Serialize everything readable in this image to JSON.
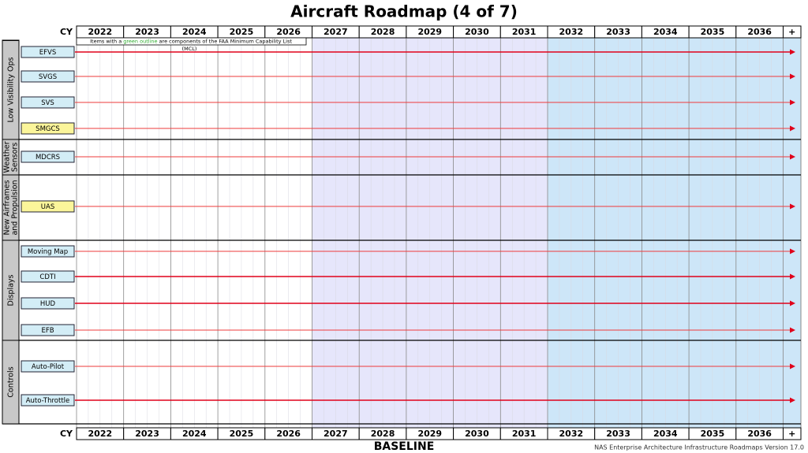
{
  "title": "Aircraft Roadmap (4 of 7)",
  "cy_label": "CY",
  "years": [
    "2022",
    "2023",
    "2024",
    "2025",
    "2026",
    "2027",
    "2028",
    "2029",
    "2030",
    "2031",
    "2032",
    "2033",
    "2034",
    "2035",
    "2036",
    "+"
  ],
  "note": {
    "before": "Items with a ",
    "highlight": "green outline",
    "after": " are components of the FAA Minimum Capability List",
    "line2": "(MCL)"
  },
  "groups": [
    {
      "label": [
        "Low Visibility Ops"
      ],
      "rows": [
        {
          "label": "EFVS"
        },
        {
          "label": "SVGS"
        },
        {
          "label": "SVS"
        },
        {
          "label": "SMGCS"
        }
      ]
    },
    {
      "label": [
        "Weather",
        "Sensors"
      ],
      "rows": [
        {
          "label": "MDCRS"
        }
      ]
    },
    {
      "label": [
        "New Airframes",
        "and Propulsion"
      ],
      "rows": [
        {
          "label": "UAS"
        }
      ]
    },
    {
      "label": [
        "Displays"
      ],
      "rows": [
        {
          "label": "Moving Map"
        },
        {
          "label": "CDTI"
        },
        {
          "label": "HUD"
        },
        {
          "label": "EFB"
        }
      ]
    },
    {
      "label": [
        "Controls"
      ],
      "rows": [
        {
          "label": "Auto-Pilot"
        },
        {
          "label": "Auto-Throttle"
        }
      ]
    }
  ],
  "footer": {
    "center": "BASELINE",
    "right": "NAS Enterprise Architecture Infrastructure Roadmaps Version 17.0"
  }
}
